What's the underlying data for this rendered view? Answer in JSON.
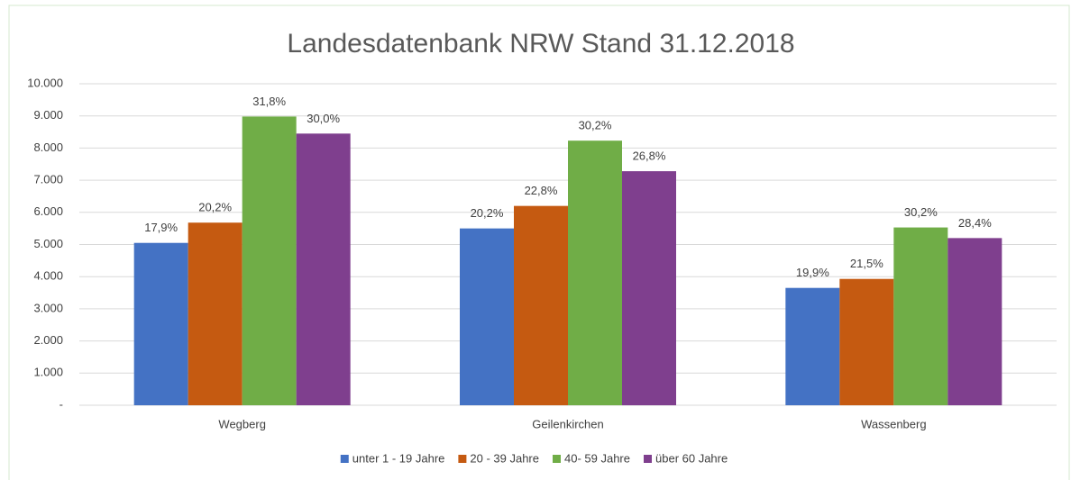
{
  "chart_data": {
    "type": "bar",
    "title": "Landesdatenbank NRW Stand 31.12.2018",
    "categories": [
      "Wegberg",
      "Geilenkirchen",
      "Wassenberg"
    ],
    "series": [
      {
        "name": "unter 1 - 19 Jahre",
        "color": "#4472c4",
        "values": [
          5050,
          5500,
          3650
        ],
        "labels": [
          "17,9%",
          "20,2%",
          "19,9%"
        ]
      },
      {
        "name": "20 - 39 Jahre",
        "color": "#c55a11",
        "values": [
          5680,
          6200,
          3930
        ],
        "labels": [
          "20,2%",
          "22,8%",
          "21,5%"
        ]
      },
      {
        "name": "40- 59 Jahre",
        "color": "#70ad47",
        "values": [
          8980,
          8230,
          5530
        ],
        "labels": [
          "31,8%",
          "30,2%",
          "30,2%"
        ]
      },
      {
        "name": "über 60 Jahre",
        "color": "#7f3f8e",
        "values": [
          8450,
          7280,
          5200
        ],
        "labels": [
          "30,0%",
          "26,8%",
          "28,4%"
        ]
      }
    ],
    "ylim": [
      0,
      10000
    ],
    "yticks": [
      {
        "value": 0,
        "label": "-"
      },
      {
        "value": 1000,
        "label": "1.000"
      },
      {
        "value": 2000,
        "label": "2.000"
      },
      {
        "value": 3000,
        "label": "3.000"
      },
      {
        "value": 4000,
        "label": "4.000"
      },
      {
        "value": 5000,
        "label": "5.000"
      },
      {
        "value": 6000,
        "label": "6.000"
      },
      {
        "value": 7000,
        "label": "7.000"
      },
      {
        "value": 8000,
        "label": "8.000"
      },
      {
        "value": 9000,
        "label": "9.000"
      },
      {
        "value": 10000,
        "label": "10.000"
      }
    ],
    "grid": true,
    "legend": "bottom"
  }
}
